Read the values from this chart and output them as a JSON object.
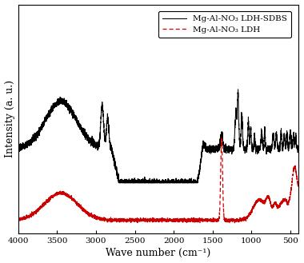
{
  "xlabel": "Wave number (cm⁻¹)",
  "ylabel": "Intensity (a. u.)",
  "legend_black": "Mg-Al-NO₃ LDH-SDBS",
  "legend_red": "Mg-Al-NO₃ LDH",
  "black_color": "#000000",
  "red_color": "#cc0000",
  "fig_bg": "#ffffff",
  "ax_bg": "#ffffff",
  "xticks": [
    4000,
    3500,
    3000,
    2500,
    2000,
    1500,
    1000,
    500
  ],
  "xlim": [
    4000,
    400
  ],
  "ylim": [
    0.0,
    1.35
  ],
  "linewidth_black": 0.75,
  "linewidth_red": 0.9,
  "noise_black": 0.01,
  "noise_red": 0.005
}
